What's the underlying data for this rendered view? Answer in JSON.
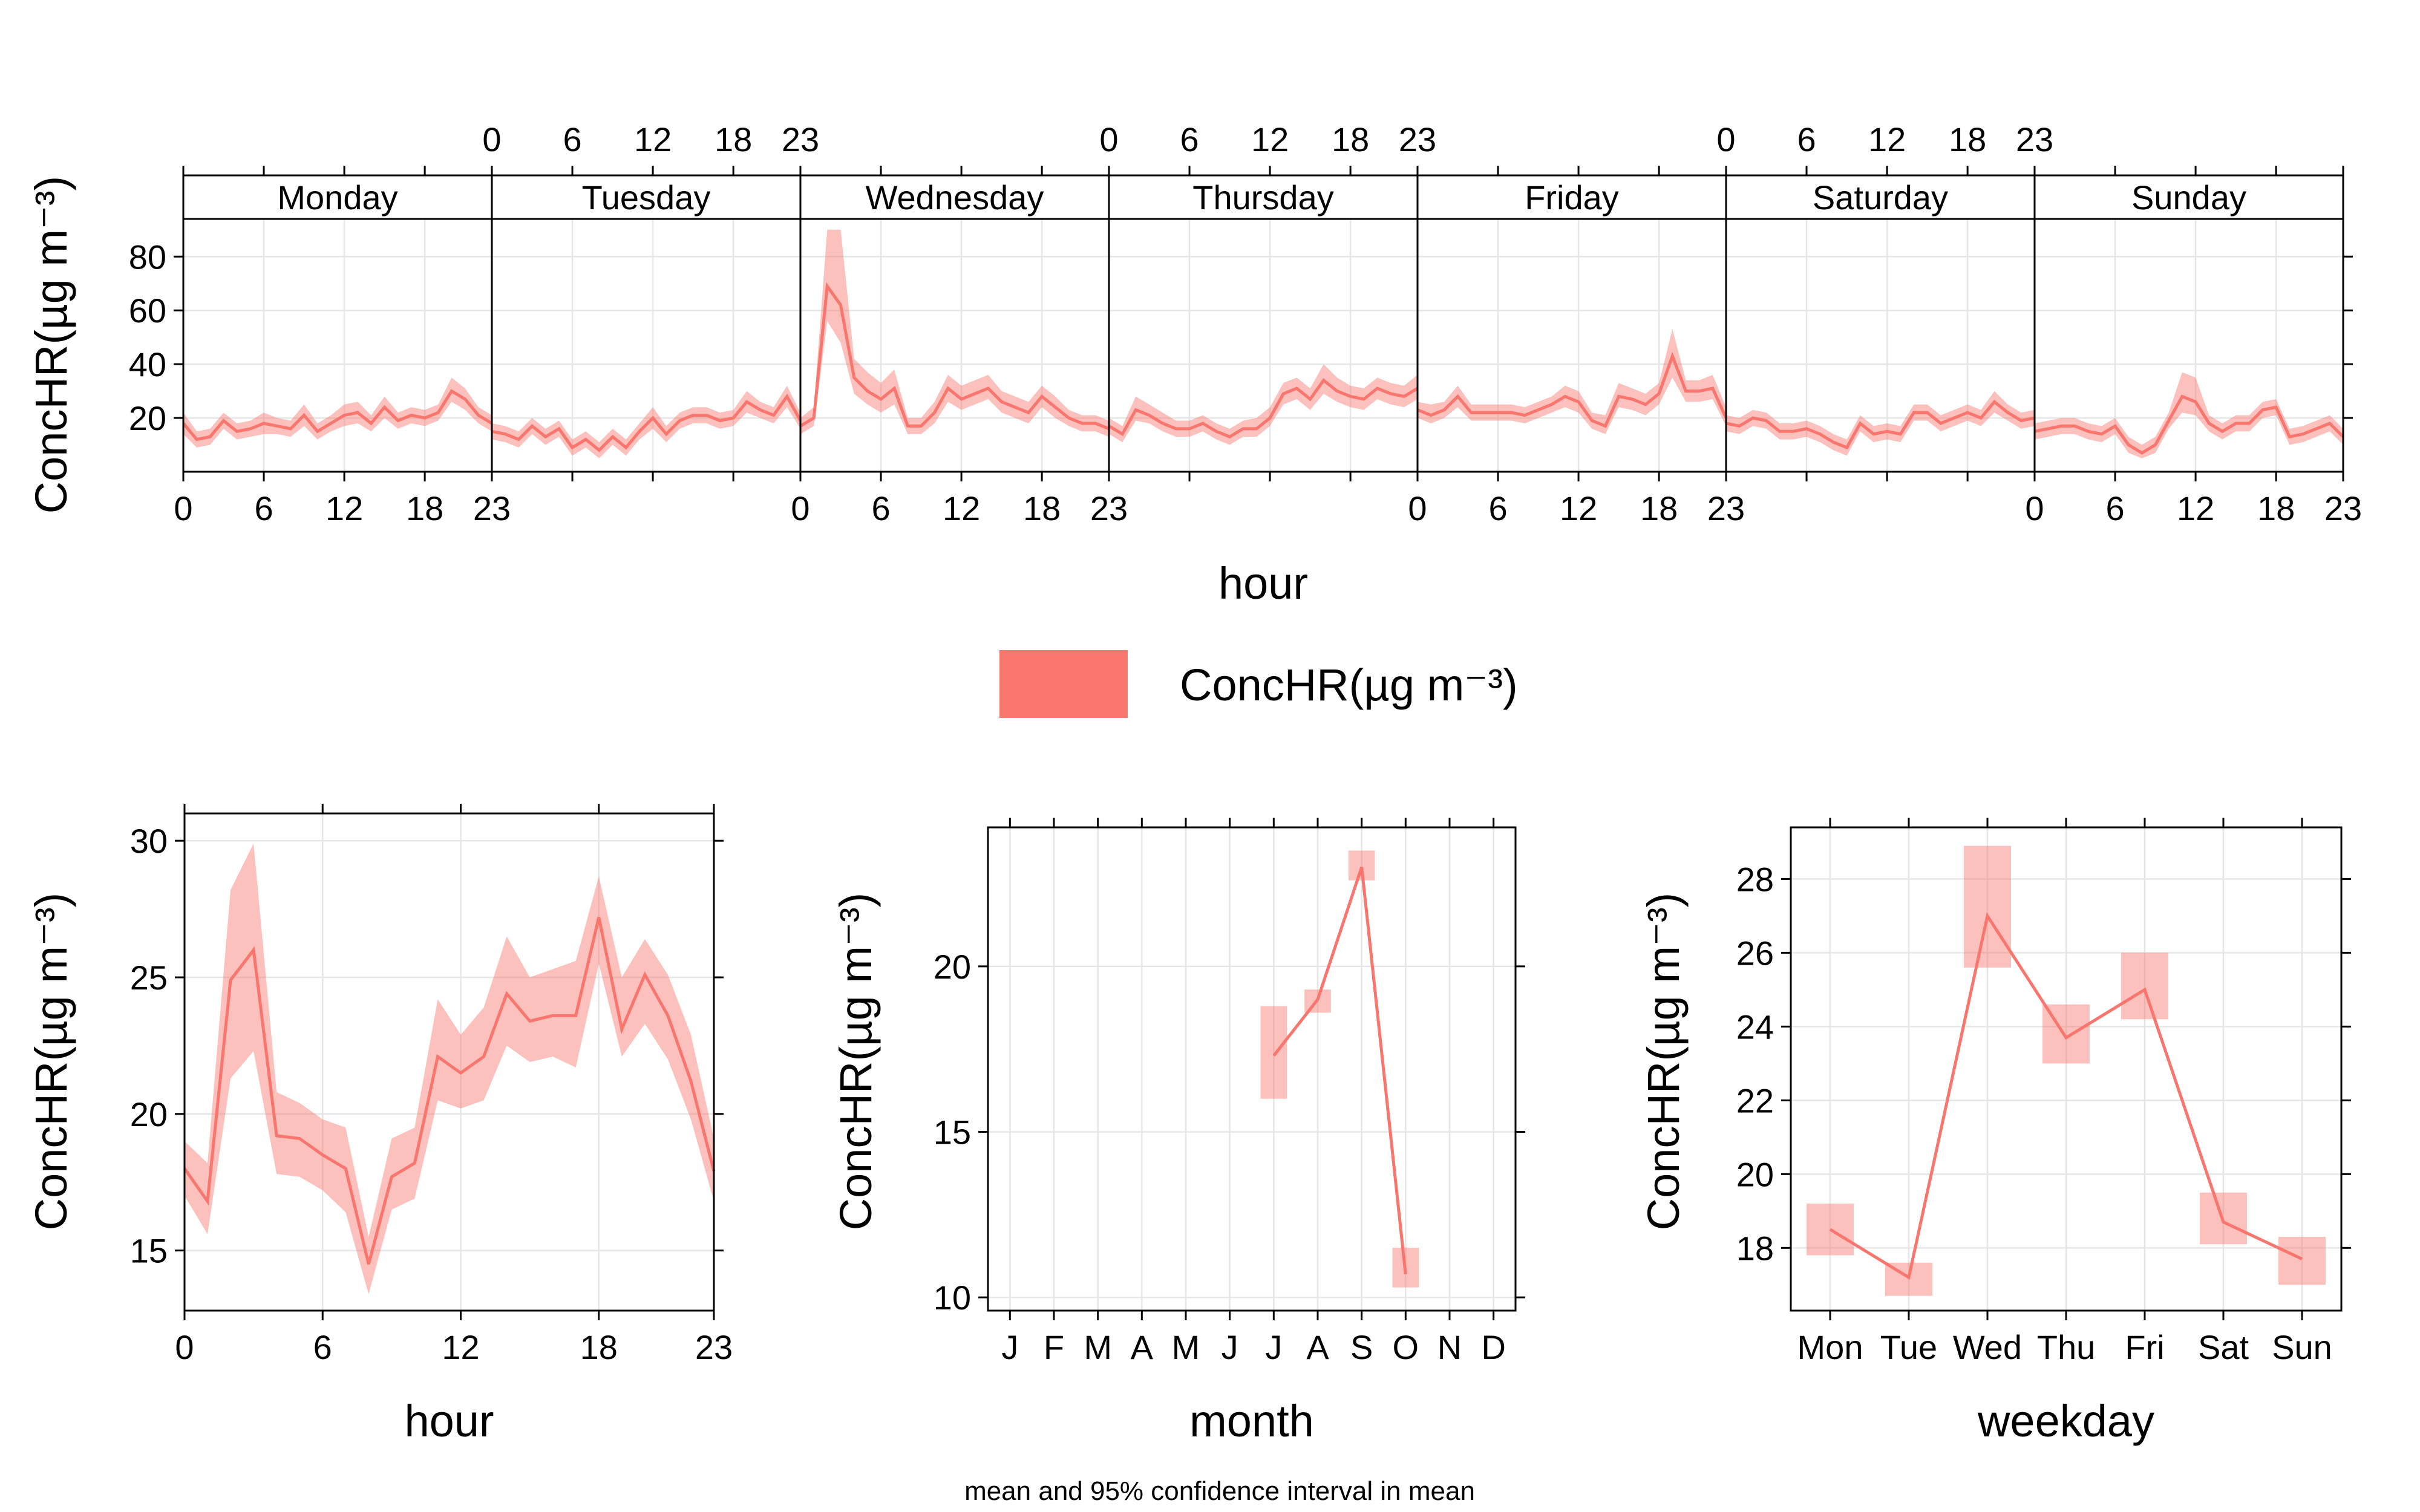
{
  "colors": {
    "series": "#F8766D"
  },
  "legend": {
    "label": "ConcHR(µg m⁻³)"
  },
  "footer": {
    "caption": "mean and 95% confidence interval in mean"
  },
  "chart_data": [
    {
      "type": "line",
      "panel": "hour-by-weekday",
      "xlabel": "hour",
      "ylabel": "ConcHR(µg m⁻³)",
      "x_ticks": [
        0,
        6,
        12,
        18,
        23
      ],
      "y_ticks": [
        20,
        40,
        60,
        80
      ],
      "ylim": [
        0,
        94
      ],
      "grid": true,
      "panels": [
        {
          "day": "Monday",
          "mean": [
            18,
            12,
            13,
            19,
            15,
            16,
            18,
            17,
            16,
            21,
            15,
            18,
            21,
            22,
            18,
            24,
            19,
            21,
            20,
            22,
            30,
            27,
            21,
            18
          ],
          "lower": [
            14,
            9,
            10,
            16,
            12,
            13,
            14,
            14,
            13,
            17,
            12,
            15,
            17,
            18,
            15,
            20,
            16,
            18,
            17,
            19,
            26,
            23,
            18,
            15
          ],
          "upper": [
            22,
            15,
            16,
            22,
            18,
            19,
            22,
            20,
            19,
            25,
            18,
            21,
            25,
            26,
            21,
            28,
            22,
            24,
            23,
            25,
            35,
            31,
            24,
            21
          ]
        },
        {
          "day": "Tuesday",
          "mean": [
            15,
            14,
            12,
            17,
            13,
            16,
            9,
            12,
            8,
            13,
            9,
            15,
            20,
            14,
            19,
            21,
            21,
            19,
            20,
            26,
            23,
            21,
            28,
            19
          ],
          "lower": [
            12,
            11,
            9,
            14,
            10,
            13,
            6,
            9,
            5,
            10,
            6,
            12,
            16,
            11,
            16,
            18,
            18,
            16,
            17,
            22,
            20,
            18,
            24,
            16
          ],
          "upper": [
            18,
            17,
            15,
            20,
            16,
            19,
            12,
            15,
            11,
            16,
            12,
            18,
            24,
            17,
            22,
            24,
            24,
            22,
            23,
            30,
            26,
            24,
            32,
            22
          ]
        },
        {
          "day": "Wednesday",
          "mean": [
            17,
            20,
            69,
            62,
            35,
            30,
            27,
            31,
            17,
            17,
            22,
            31,
            27,
            29,
            31,
            26,
            24,
            22,
            28,
            24,
            20,
            18,
            18,
            16
          ],
          "lower": [
            14,
            17,
            56,
            48,
            29,
            25,
            22,
            25,
            14,
            14,
            18,
            26,
            23,
            25,
            27,
            22,
            20,
            18,
            24,
            20,
            17,
            15,
            15,
            13
          ],
          "upper": [
            20,
            24,
            90,
            90,
            42,
            37,
            33,
            38,
            20,
            20,
            26,
            36,
            32,
            34,
            36,
            30,
            28,
            26,
            32,
            28,
            23,
            21,
            21,
            19
          ]
        },
        {
          "day": "Thursday",
          "mean": [
            17,
            14,
            23,
            21,
            18,
            16,
            16,
            18,
            15,
            13,
            16,
            16,
            20,
            29,
            31,
            27,
            34,
            30,
            28,
            27,
            31,
            29,
            28,
            31
          ],
          "lower": [
            14,
            11,
            19,
            18,
            15,
            13,
            13,
            15,
            12,
            10,
            13,
            13,
            17,
            25,
            27,
            23,
            29,
            26,
            24,
            23,
            27,
            25,
            24,
            27
          ],
          "upper": [
            20,
            17,
            28,
            25,
            22,
            19,
            19,
            21,
            18,
            16,
            19,
            20,
            24,
            33,
            35,
            31,
            40,
            35,
            32,
            31,
            35,
            33,
            32,
            36
          ]
        },
        {
          "day": "Friday",
          "mean": [
            23,
            21,
            23,
            28,
            22,
            22,
            22,
            22,
            21,
            23,
            25,
            28,
            26,
            19,
            17,
            28,
            27,
            25,
            29,
            43,
            30,
            30,
            31,
            20
          ],
          "lower": [
            20,
            18,
            20,
            24,
            19,
            19,
            19,
            19,
            18,
            20,
            22,
            24,
            22,
            16,
            14,
            24,
            23,
            21,
            25,
            35,
            26,
            26,
            27,
            17
          ],
          "upper": [
            26,
            25,
            26,
            32,
            25,
            25,
            25,
            25,
            24,
            26,
            28,
            32,
            30,
            22,
            21,
            33,
            31,
            29,
            33,
            53,
            34,
            34,
            36,
            24
          ]
        },
        {
          "day": "Saturday",
          "mean": [
            18,
            17,
            20,
            19,
            15,
            15,
            16,
            14,
            11,
            9,
            18,
            14,
            15,
            14,
            22,
            22,
            18,
            20,
            22,
            20,
            26,
            22,
            19,
            20
          ],
          "lower": [
            15,
            14,
            17,
            16,
            12,
            12,
            13,
            11,
            8,
            6,
            15,
            11,
            12,
            11,
            19,
            19,
            15,
            17,
            19,
            17,
            22,
            19,
            16,
            17
          ],
          "upper": [
            21,
            20,
            23,
            22,
            18,
            18,
            19,
            17,
            14,
            12,
            21,
            17,
            18,
            17,
            25,
            25,
            21,
            23,
            25,
            23,
            30,
            25,
            22,
            23
          ]
        },
        {
          "day": "Sunday",
          "mean": [
            15,
            16,
            17,
            17,
            15,
            14,
            17,
            10,
            7,
            10,
            19,
            28,
            26,
            18,
            15,
            18,
            18,
            23,
            24,
            13,
            14,
            16,
            18,
            13
          ],
          "lower": [
            12,
            13,
            14,
            14,
            12,
            11,
            14,
            7,
            5,
            7,
            16,
            22,
            21,
            15,
            12,
            15,
            15,
            20,
            21,
            10,
            11,
            13,
            15,
            10
          ],
          "upper": [
            18,
            19,
            20,
            20,
            18,
            17,
            20,
            13,
            10,
            13,
            22,
            37,
            35,
            21,
            18,
            21,
            21,
            26,
            27,
            16,
            17,
            19,
            21,
            16
          ]
        }
      ]
    },
    {
      "type": "line",
      "panel": "hour",
      "xlabel": "hour",
      "ylabel": "ConcHR(µg m⁻³)",
      "x_ticks": [
        0,
        6,
        12,
        18,
        23
      ],
      "y_ticks": [
        15,
        20,
        25,
        30
      ],
      "xlim": [
        0,
        23
      ],
      "ylim": [
        12.8,
        31
      ],
      "grid": true,
      "x": [
        0,
        1,
        2,
        3,
        4,
        5,
        6,
        7,
        8,
        9,
        10,
        11,
        12,
        13,
        14,
        15,
        16,
        17,
        18,
        19,
        20,
        21,
        22,
        23
      ],
      "mean": [
        18.0,
        16.8,
        24.9,
        26.0,
        19.2,
        19.1,
        18.5,
        18.0,
        14.5,
        17.7,
        18.2,
        22.1,
        21.5,
        22.1,
        24.4,
        23.4,
        23.6,
        23.6,
        27.2,
        23.1,
        25.1,
        23.6,
        21.2,
        17.9
      ],
      "lower": [
        17.0,
        15.6,
        21.3,
        22.3,
        17.8,
        17.7,
        17.2,
        16.4,
        13.4,
        16.5,
        16.9,
        20.5,
        20.2,
        20.5,
        22.5,
        21.9,
        22.1,
        21.7,
        25.5,
        22.1,
        23.3,
        22.0,
        19.8,
        16.8
      ],
      "upper": [
        19.0,
        18.2,
        28.2,
        29.9,
        20.8,
        20.4,
        19.8,
        19.5,
        15.5,
        19.1,
        19.5,
        24.2,
        22.9,
        23.9,
        26.5,
        25.0,
        25.3,
        25.6,
        28.7,
        25.0,
        26.4,
        25.1,
        22.9,
        19.1
      ]
    },
    {
      "type": "line",
      "panel": "month",
      "xlabel": "month",
      "ylabel": "ConcHR(µg m⁻³)",
      "categories": [
        "J",
        "F",
        "M",
        "A",
        "M",
        "J",
        "J",
        "A",
        "S",
        "O",
        "N",
        "D"
      ],
      "y_ticks": [
        10,
        15,
        20
      ],
      "ylim": [
        9.6,
        24.2
      ],
      "grid": true,
      "mean": [
        null,
        null,
        null,
        null,
        null,
        null,
        17.3,
        19.0,
        23.0,
        10.7,
        null,
        null
      ],
      "lower": [
        null,
        null,
        null,
        null,
        null,
        null,
        16.0,
        18.6,
        22.6,
        10.3,
        null,
        null
      ],
      "upper": [
        null,
        null,
        null,
        null,
        null,
        null,
        18.8,
        19.3,
        23.5,
        11.5,
        null,
        null
      ]
    },
    {
      "type": "line",
      "panel": "weekday",
      "xlabel": "weekday",
      "ylabel": "ConcHR(µg m⁻³)",
      "categories": [
        "Mon",
        "Tue",
        "Wed",
        "Thu",
        "Fri",
        "Sat",
        "Sun"
      ],
      "y_ticks": [
        18,
        20,
        22,
        24,
        26,
        28
      ],
      "ylim": [
        16.3,
        29.4
      ],
      "grid": true,
      "mean": [
        18.5,
        17.2,
        27.0,
        23.7,
        25.0,
        18.7,
        17.7
      ],
      "lower": [
        17.8,
        16.7,
        25.6,
        23.0,
        24.2,
        18.1,
        17.0
      ],
      "upper": [
        19.2,
        17.6,
        28.9,
        24.6,
        26.0,
        19.5,
        18.3
      ]
    }
  ]
}
